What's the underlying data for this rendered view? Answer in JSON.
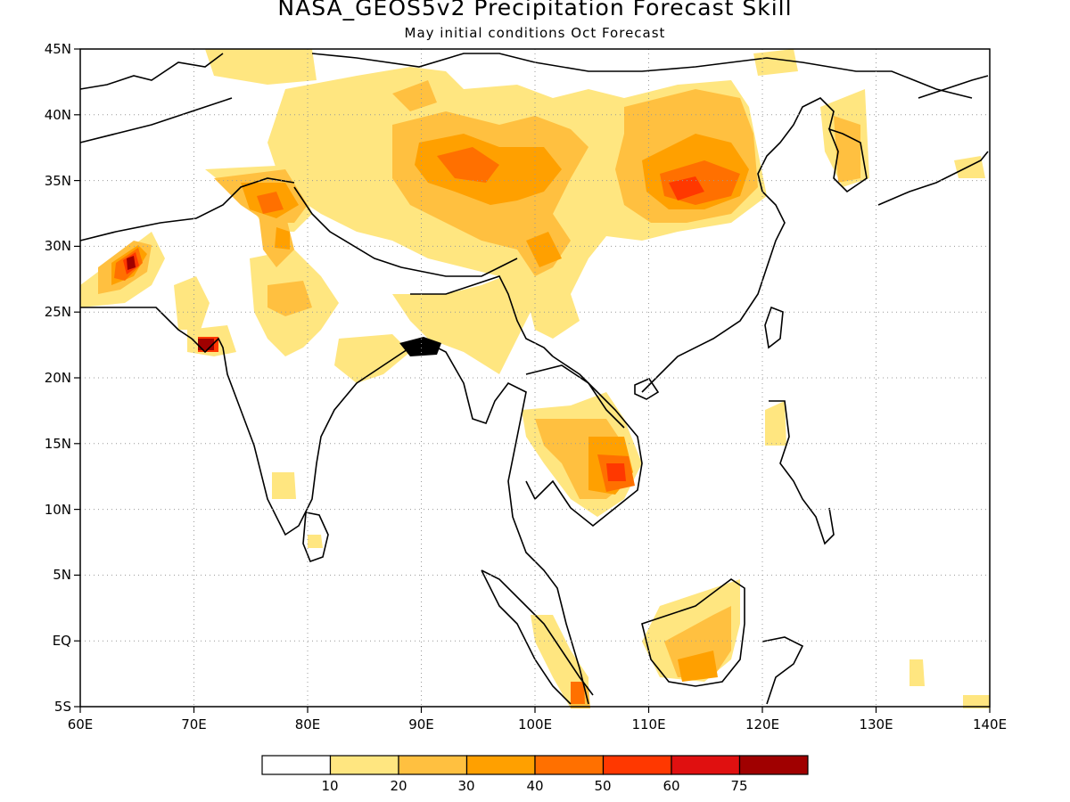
{
  "title": "NASA_GEOS5v2 Precipitation Forecast Skill",
  "subtitle": "May initial conditions  Oct Forecast",
  "map": {
    "lon_range": [
      60,
      140
    ],
    "lat_range": [
      -5,
      45
    ],
    "grid": true,
    "lon_ticks": [
      "60E",
      "70E",
      "80E",
      "90E",
      "100E",
      "110E",
      "120E",
      "130E",
      "140E"
    ],
    "lat_ticks": [
      "5S",
      "EQ",
      "5N",
      "10N",
      "15N",
      "20N",
      "25N",
      "30N",
      "35N",
      "40N",
      "45N"
    ]
  },
  "colorbar": {
    "colors": [
      "#ffffff",
      "#ffe680",
      "#ffc040",
      "#ffa000",
      "#ff7000",
      "#ff3800",
      "#e01010",
      "#a00000"
    ],
    "labels": [
      "10",
      "20",
      "30",
      "40",
      "50",
      "60",
      "75"
    ]
  }
}
